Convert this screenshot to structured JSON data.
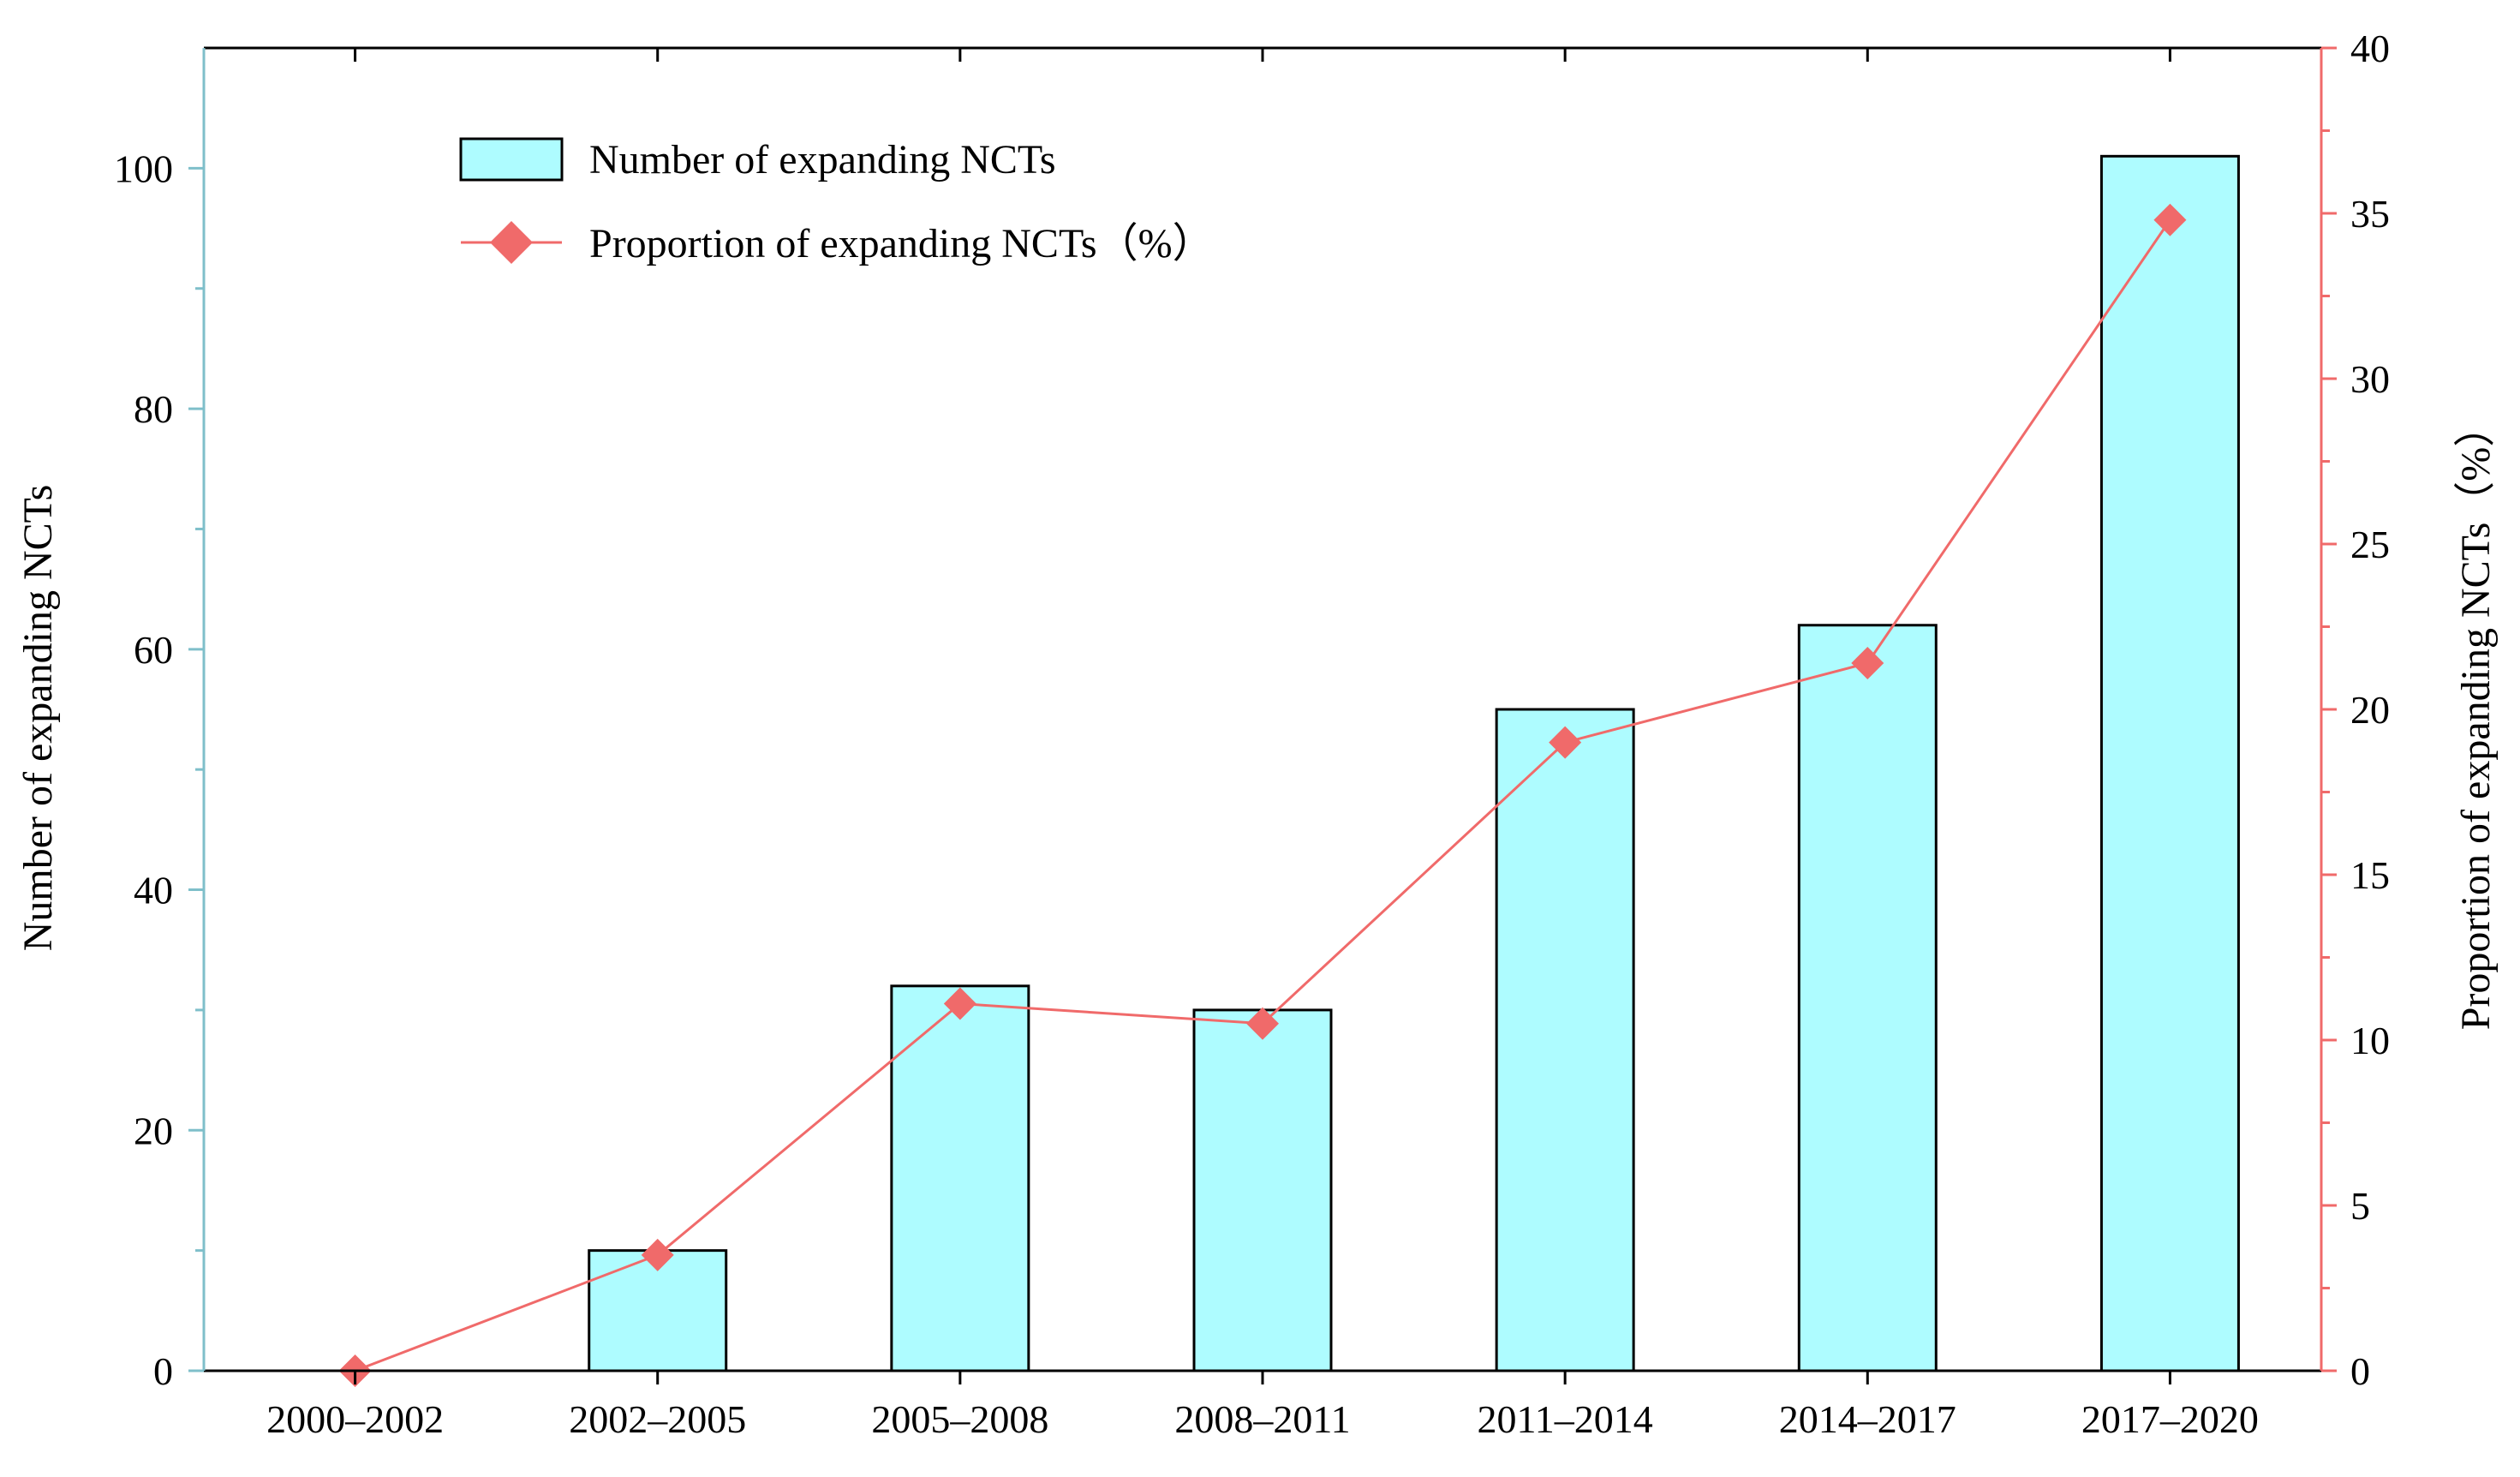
{
  "colors": {
    "bar_fill": "#aefcff",
    "bar_stroke": "#000000",
    "line_color": "#f06a6a",
    "left_axis": "#7fbfca",
    "right_axis": "#f06a6a"
  },
  "chart_data": {
    "type": "bar",
    "title": "",
    "categories": [
      "2000–2002",
      "2002–2005",
      "2005–2008",
      "2008–2011",
      "2011–2014",
      "2014–2017",
      "2017–2020"
    ],
    "series": [
      {
        "name": "Number of expanding NCTs",
        "type": "bar",
        "axis": "left",
        "values": [
          0,
          10,
          32,
          30,
          55,
          62,
          101
        ]
      },
      {
        "name": "Proportion of expanding NCTs（%）",
        "type": "line",
        "marker": "diamond",
        "axis": "right",
        "values": [
          0,
          3.5,
          11.1,
          10.5,
          19.0,
          21.4,
          34.8
        ]
      }
    ],
    "xlabel": "",
    "ylabel": "Number of expanding NCTs",
    "ylabel_right": "Proportion of expanding NCTs（%）",
    "ylim": [
      0,
      110
    ],
    "ylim_right": [
      0,
      40
    ],
    "yticks": [
      0,
      20,
      40,
      60,
      80,
      100
    ],
    "yticks_right": [
      0,
      5,
      10,
      15,
      20,
      25,
      30,
      35,
      40
    ],
    "grid": false,
    "legend_position": "top-left"
  }
}
